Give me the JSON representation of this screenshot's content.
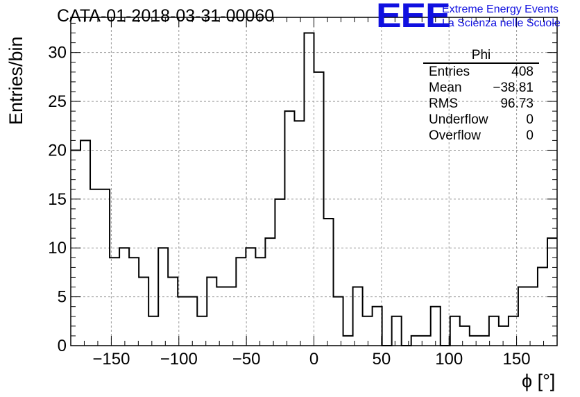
{
  "title": "CATA-01-2018-03-31-00060",
  "logo": {
    "mark": "EEE",
    "line1": "Extreme Energy Events",
    "line2": "La Scienza nelle Scuole",
    "color": "#1010e0"
  },
  "stats": {
    "title": "Phi",
    "rows": [
      {
        "label": "Entries",
        "value": "408"
      },
      {
        "label": "Mean",
        "value": "−38.81"
      },
      {
        "label": "RMS",
        "value": "96.73"
      },
      {
        "label": "Underflow",
        "value": "0"
      },
      {
        "label": "Overflow",
        "value": "0"
      }
    ]
  },
  "chart_data": {
    "type": "histogram",
    "title": "CATA-01-2018-03-31-00060",
    "xlabel": "ϕ [°]",
    "ylabel": "Entries/bin",
    "xlim": [
      -180,
      180
    ],
    "ylim": [
      0,
      33.6
    ],
    "bin_width": 7.2,
    "bin_edges_start": -180,
    "values": [
      20,
      21,
      16,
      16,
      9,
      10,
      9,
      7,
      3,
      10,
      7,
      5,
      5,
      3,
      7,
      6,
      6,
      9,
      10,
      9,
      11,
      15,
      24,
      23,
      32,
      28,
      13,
      5,
      1,
      6,
      3,
      4,
      0,
      3,
      0,
      1,
      1,
      4,
      0,
      3,
      2,
      1,
      1,
      3,
      2,
      3,
      6,
      6,
      8,
      11
    ],
    "xticks": [
      -150,
      -100,
      -50,
      0,
      50,
      100,
      150
    ],
    "yticks": [
      0,
      5,
      10,
      15,
      20,
      25,
      30
    ],
    "grid": true
  }
}
